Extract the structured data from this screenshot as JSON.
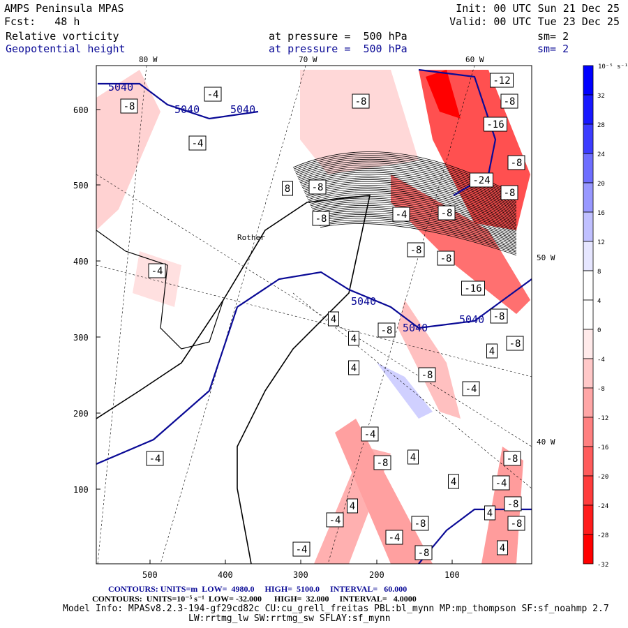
{
  "header": {
    "model": "AMPS Peninsula MPAS",
    "init": "Init: 00 UTC Sun 21 Dec 25",
    "fcst": "Fcst:   48 h",
    "valid": "Valid: 00 UTC Tue 23 Dec 25"
  },
  "fields": [
    {
      "name": "Relative vorticity",
      "level": "at pressure =  500 hPa",
      "smooth": "sm= 2"
    },
    {
      "name": "Geopotential height",
      "level": "at pressure =  500 hPa",
      "smooth": "sm= 2"
    }
  ],
  "axes": {
    "lon_top": [
      "80 W",
      "70 W",
      "60 W"
    ],
    "lon_right": [
      "50 W",
      "40 W"
    ],
    "y_ticks": [
      "600",
      "500",
      "400",
      "300",
      "200",
      "100"
    ],
    "x_ticks": [
      "500",
      "400",
      "300",
      "200",
      "100"
    ]
  },
  "place_label": "Rother",
  "colorbar": {
    "units": "10⁻⁵ s⁻¹",
    "labels": [
      "32",
      "28",
      "24",
      "20",
      "16",
      "12",
      "8",
      "4",
      "0",
      "-4",
      "-8",
      "-12",
      "-16",
      "-20",
      "-24",
      "-28",
      "-32"
    ],
    "colors": [
      "#0000ff",
      "#1818ff",
      "#3c3cff",
      "#6e6eff",
      "#9898ff",
      "#c0c0ff",
      "#e6e6ff",
      "#ffffff",
      "#ffffff",
      "#ffffff",
      "#ffeaea",
      "#ffc8c8",
      "#ffa6a6",
      "#ff8080",
      "#ff5c5c",
      "#ff3c3c",
      "#ff1c1c",
      "#ff0000"
    ]
  },
  "height_contours": {
    "color": "#0a0a96",
    "labels": [
      "5040",
      "5040",
      "5040",
      "5040",
      "5040",
      "5040"
    ]
  },
  "vort_labels": [
    "-4",
    "-8",
    "-4",
    "-4",
    "-8",
    "-8",
    "-12",
    "-8",
    "-16",
    "-8",
    "-24",
    "-8",
    "-4",
    "-8",
    "-8",
    "-16",
    "-8",
    "-8",
    "4",
    "4",
    "4",
    "4",
    "-8",
    "-8",
    "-4",
    "-4",
    "-8",
    "4",
    "4",
    "-4",
    "4",
    "-4",
    "-8",
    "-8",
    "-8",
    "4",
    "-8",
    "-4",
    "-8",
    "4",
    "8",
    "-8",
    "-8",
    "-4",
    "-4"
  ],
  "footer": {
    "height_contours": "CONTOURS: UNITS=m  LOW=  4980.0     HIGH=  5100.0     INTERVAL=   60.000",
    "vort_contours": "CONTOURS:  UNITS=10⁻⁵ s⁻¹  LOW= -32.000      HIGH=  32.000     INTERVAL=   4.0000",
    "model_info": "Model Info: MPASv8.2.3-194-gf29cd82c CU:cu_grell_freitas PBL:bl_mynn MP:mp_thompson SF:sf_noahmp 2.7",
    "model_info2": "LW:rrtmg_lw SW:rrtmg_sw SFLAY:sf_mynn"
  }
}
